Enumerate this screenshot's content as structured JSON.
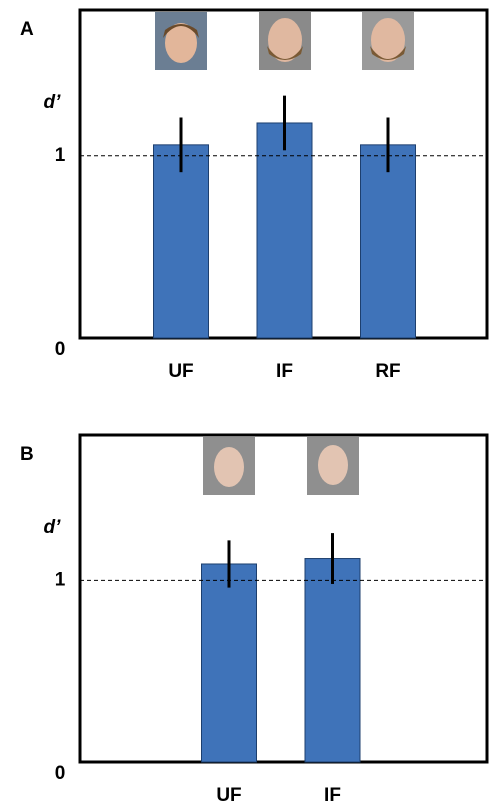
{
  "chart_data": [
    {
      "type": "bar",
      "panel": "A",
      "ylabel": "d’",
      "categories": [
        "UF",
        "IF",
        "RF"
      ],
      "values": [
        1.06,
        1.18,
        1.06
      ],
      "errors": [
        0.15,
        0.15,
        0.15
      ],
      "color": "#3f73b9",
      "ylim": [
        0,
        1.8
      ],
      "yticks": [
        0,
        1
      ],
      "hline": 1
    },
    {
      "type": "bar",
      "panel": "B",
      "ylabel": "d’",
      "categories": [
        "UF",
        "IF"
      ],
      "values": [
        1.09,
        1.12
      ],
      "errors": [
        0.13,
        0.14
      ],
      "color": "#3f73b9",
      "ylim": [
        0,
        1.8
      ],
      "yticks": [
        0,
        1
      ],
      "hline": 1
    }
  ]
}
